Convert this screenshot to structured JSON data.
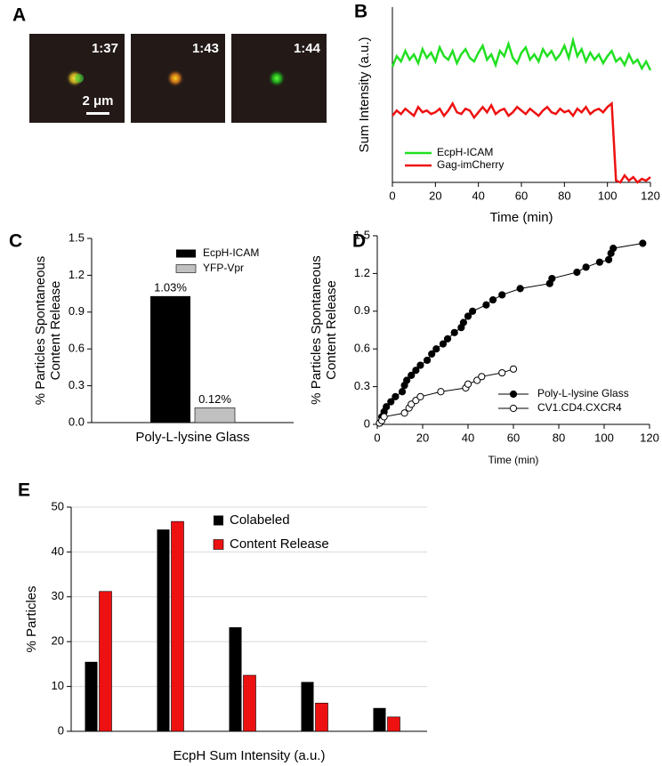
{
  "panel_a": {
    "panel": "A",
    "frames": [
      "1:37",
      "1:43",
      "1:44"
    ],
    "scale_bar": "2 μm"
  },
  "chart_data": [
    {
      "type": "line",
      "panel": "B",
      "xlabel": "Time (min)",
      "ylabel": "Sum Intensity (a.u.)",
      "x": [
        0,
        2,
        4,
        6,
        8,
        10,
        12,
        14,
        16,
        18,
        20,
        22,
        24,
        26,
        28,
        30,
        32,
        34,
        36,
        38,
        40,
        42,
        44,
        46,
        48,
        50,
        52,
        54,
        56,
        58,
        60,
        62,
        64,
        66,
        68,
        70,
        72,
        74,
        76,
        78,
        80,
        82,
        84,
        86,
        88,
        90,
        92,
        94,
        96,
        98,
        100,
        102,
        104,
        106,
        108,
        110,
        112,
        114,
        116,
        118,
        120
      ],
      "xlim": [
        0,
        120
      ],
      "xticks": [
        0,
        20,
        40,
        60,
        80,
        100,
        120
      ],
      "ylim": [
        0,
        10
      ],
      "legend": "lower left",
      "series": [
        {
          "name": "EcpH-ICAM",
          "color": "#22e022",
          "values": [
            6.6,
            7.2,
            6.9,
            7.5,
            7.0,
            7.3,
            6.8,
            7.6,
            7.1,
            7.4,
            6.9,
            7.7,
            7.2,
            7.0,
            7.5,
            6.8,
            7.3,
            7.6,
            7.1,
            6.9,
            7.4,
            7.8,
            7.0,
            7.3,
            6.7,
            7.5,
            7.2,
            7.9,
            7.1,
            6.8,
            7.4,
            7.7,
            7.0,
            7.3,
            6.9,
            7.6,
            7.2,
            7.5,
            7.0,
            7.3,
            7.8,
            7.1,
            8.1,
            7.2,
            7.6,
            6.9,
            7.4,
            7.0,
            7.3,
            6.8,
            7.2,
            7.5,
            6.9,
            7.1,
            6.7,
            7.3,
            6.8,
            7.0,
            6.5,
            6.9,
            6.4
          ]
        },
        {
          "name": "Gag-imCherry",
          "color": "#ee1111",
          "values": [
            3.8,
            4.1,
            3.9,
            4.2,
            4.0,
            3.8,
            4.3,
            4.0,
            4.1,
            3.9,
            4.0,
            4.2,
            3.8,
            4.1,
            4.5,
            4.0,
            3.9,
            4.2,
            4.1,
            3.7,
            4.0,
            4.3,
            4.0,
            4.4,
            3.9,
            4.1,
            4.2,
            3.8,
            4.0,
            4.3,
            4.1,
            3.9,
            4.2,
            4.0,
            3.8,
            4.1,
            4.3,
            4.0,
            3.9,
            4.2,
            4.0,
            4.1,
            3.8,
            4.2,
            4.0,
            4.3,
            3.9,
            4.1,
            4.2,
            4.0,
            4.3,
            4.5,
            0.1,
            0.0,
            0.4,
            0.1,
            0.3,
            0.0,
            0.2,
            0.1,
            0.3
          ]
        }
      ]
    },
    {
      "type": "bar",
      "panel": "C",
      "ylabel": [
        "% Particles Spontaneous",
        "Content Release"
      ],
      "categories": [
        "Poly-L-lysine Glass"
      ],
      "ylim": [
        0,
        1.5
      ],
      "yticks": [
        {
          "value": 0,
          "label": "0.0"
        },
        0.3,
        0.6,
        0.9,
        1.2,
        1.5
      ],
      "legend": "upper right",
      "series": [
        {
          "name": "EcpH-ICAM",
          "color": "#000000",
          "values": [
            1.03
          ],
          "value_labels": [
            "1.03%"
          ]
        },
        {
          "name": "YFP-Vpr",
          "color": "#c0c0c0",
          "values": [
            0.12
          ],
          "value_labels": [
            "0.12%"
          ]
        }
      ]
    },
    {
      "type": "scatter",
      "panel": "D",
      "xlabel": "Time (min)",
      "ylabel": [
        "% Particles Spontaneous",
        "Content Release"
      ],
      "xlim": [
        0,
        120
      ],
      "xticks": [
        0,
        20,
        40,
        60,
        80,
        100,
        120
      ],
      "ylim": [
        0,
        1.5
      ],
      "yticks": [
        0,
        0.3,
        0.6,
        0.9,
        1.2,
        1.5
      ],
      "legend": "lower right",
      "series": [
        {
          "name": "Poly-L-lysine Glass",
          "color": "#000000",
          "filled": true,
          "x": [
            1,
            2,
            3,
            4,
            6,
            8,
            11,
            12,
            13,
            15,
            17,
            19,
            22,
            24,
            26,
            29,
            31,
            34,
            37,
            38,
            40,
            42,
            48,
            51,
            55,
            63,
            76,
            77,
            88,
            92,
            98,
            102,
            103,
            104,
            117
          ],
          "values": [
            0.01,
            0.06,
            0.1,
            0.14,
            0.18,
            0.22,
            0.26,
            0.31,
            0.35,
            0.39,
            0.43,
            0.47,
            0.51,
            0.56,
            0.6,
            0.64,
            0.68,
            0.73,
            0.77,
            0.81,
            0.86,
            0.9,
            0.95,
            0.99,
            1.03,
            1.08,
            1.12,
            1.16,
            1.21,
            1.25,
            1.29,
            1.31,
            1.36,
            1.4,
            1.44
          ]
        },
        {
          "name": "CV1.CD4.CXCR4",
          "color": "#000000",
          "filled": false,
          "x": [
            1,
            2,
            3,
            12,
            14,
            15,
            17,
            19,
            28,
            39,
            40,
            44,
            46,
            55,
            60
          ],
          "values": [
            0.01,
            0.03,
            0.06,
            0.09,
            0.13,
            0.16,
            0.19,
            0.22,
            0.26,
            0.29,
            0.32,
            0.35,
            0.38,
            0.41,
            0.44
          ]
        }
      ]
    },
    {
      "type": "bar",
      "panel": "E",
      "xlabel": "EcpH Sum Intensity (a.u.)",
      "ylabel": "% Particles",
      "categories": [
        null,
        null,
        null,
        null,
        null
      ],
      "ylim": [
        0,
        50
      ],
      "yticks": [
        0,
        10,
        20,
        30,
        40,
        50
      ],
      "grid": true,
      "legend": "upper right",
      "series": [
        {
          "name": "Colabeled",
          "color": "#000000",
          "values": [
            15.5,
            45,
            23.2,
            11,
            5.2
          ]
        },
        {
          "name": "Content Release",
          "color": "#ee1111",
          "values": [
            31.2,
            46.8,
            12.5,
            6.3,
            3.2
          ]
        }
      ]
    }
  ]
}
